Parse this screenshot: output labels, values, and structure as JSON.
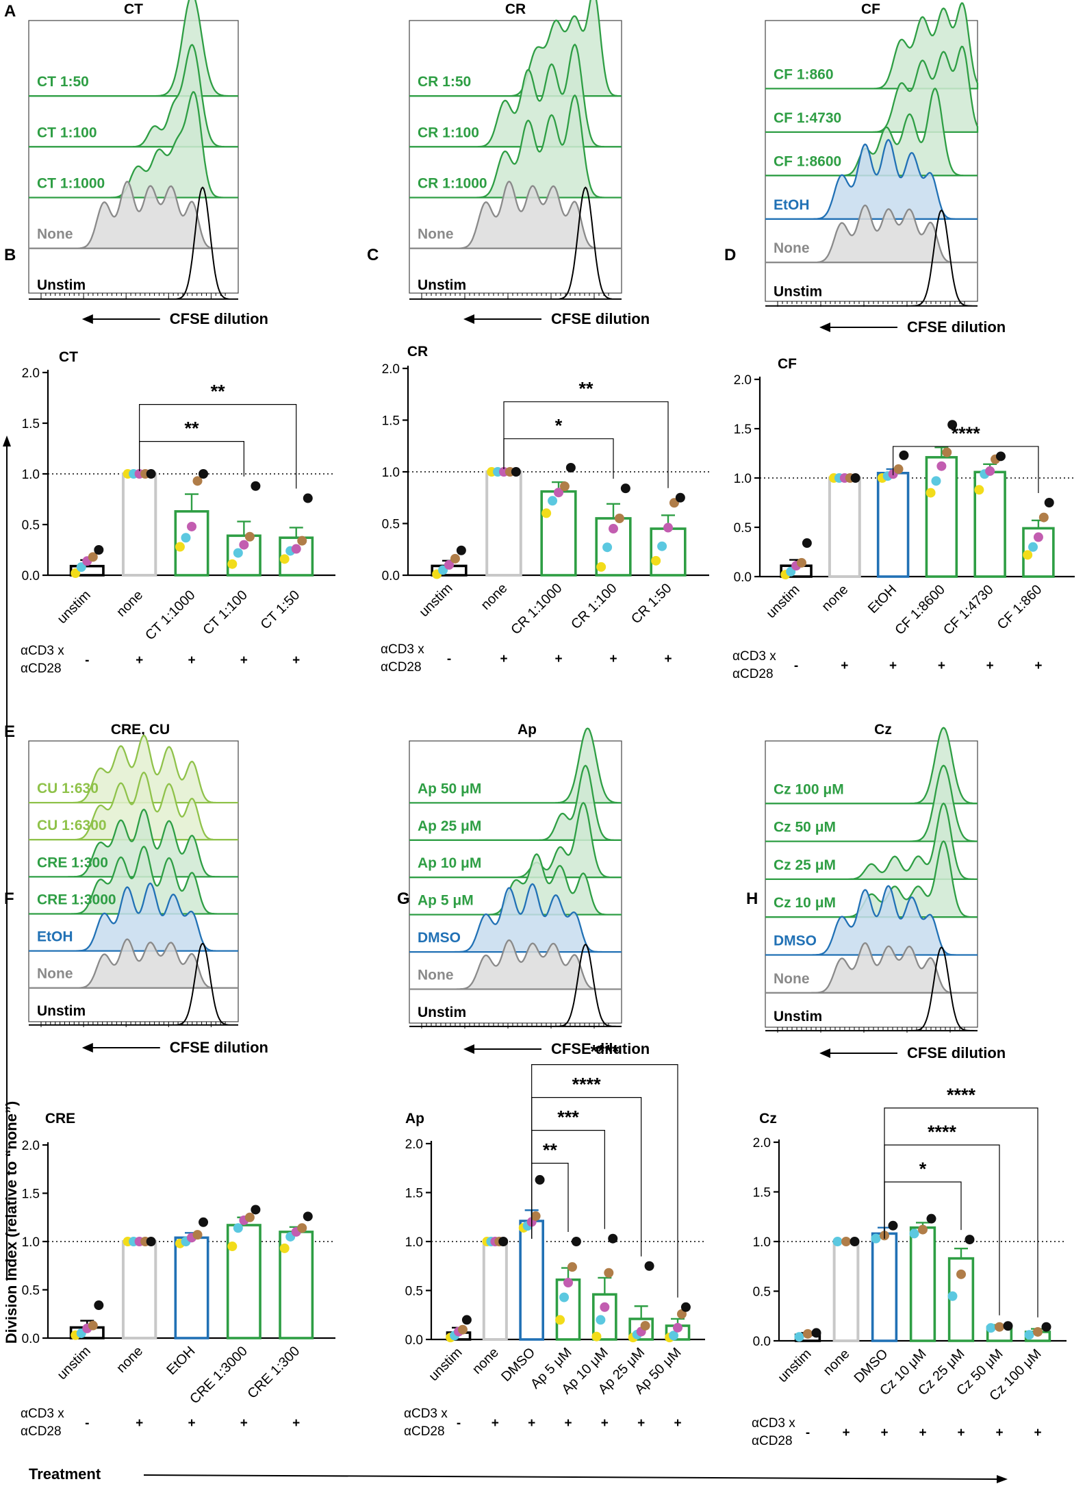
{
  "figure": {
    "y_axis_label": "Division Index (relative to “none”)",
    "x_axis_label": "Treatment",
    "stim_label_line1": "αCD3 x",
    "stim_label_line2": "αCD28"
  },
  "colors": {
    "green": "#2e9e44",
    "green_fill": "#cfe9d2",
    "lightgreen": "#8fc24a",
    "lightgreen_fill": "#e3f0d0",
    "blue": "#2171b5",
    "blue_fill": "#c7dcef",
    "gray": "#8a8a8a",
    "gray_fill": "#dcdcdc",
    "black": "#000000",
    "bar_gray": "#c8c8c8",
    "dot_yellow": "#f2dc1a",
    "dot_cyan": "#5bc8e0",
    "dot_magenta": "#c25db0",
    "dot_brown": "#b07d48",
    "dot_black": "#111111"
  },
  "histogram_panels": [
    {
      "letter": "A",
      "title": "CT",
      "xlabel": "CFSE dilution",
      "rows": [
        {
          "label": "CT 1:50",
          "color": "green"
        },
        {
          "label": "CT 1:100",
          "color": "green"
        },
        {
          "label": "CT 1:1000",
          "color": "green"
        },
        {
          "label": "None",
          "color": "gray"
        },
        {
          "label": "Unstim",
          "color": "black"
        }
      ]
    },
    {
      "letter": "",
      "title": "CR",
      "xlabel": "CFSE dilution",
      "rows": [
        {
          "label": "CR 1:50",
          "color": "green"
        },
        {
          "label": "CR 1:100",
          "color": "green"
        },
        {
          "label": "CR 1:1000",
          "color": "green"
        },
        {
          "label": "None",
          "color": "gray"
        },
        {
          "label": "Unstim",
          "color": "black"
        }
      ]
    },
    {
      "letter": "",
      "title": "CF",
      "xlabel": "CFSE dilution",
      "rows": [
        {
          "label": "CF 1:860",
          "color": "green"
        },
        {
          "label": "CF 1:4730",
          "color": "green"
        },
        {
          "label": "CF 1:8600",
          "color": "green"
        },
        {
          "label": "EtOH",
          "color": "blue"
        },
        {
          "label": "None",
          "color": "gray"
        },
        {
          "label": "Unstim",
          "color": "black"
        }
      ]
    },
    {
      "letter": "E",
      "title": "CRE, CU",
      "xlabel": "CFSE dilution",
      "rows": [
        {
          "label": "CU 1:630",
          "color": "lightgreen"
        },
        {
          "label": "CU 1:6300",
          "color": "lightgreen"
        },
        {
          "label": "CRE 1:300",
          "color": "green"
        },
        {
          "label": "CRE 1:3000",
          "color": "green"
        },
        {
          "label": "EtOH",
          "color": "blue"
        },
        {
          "label": "None",
          "color": "gray"
        },
        {
          "label": "Unstim",
          "color": "black"
        }
      ]
    },
    {
      "letter": "",
      "title": "Ap",
      "xlabel": "CFSE dilution",
      "rows": [
        {
          "label": "Ap 50 μM",
          "color": "green"
        },
        {
          "label": "Ap 25 μM",
          "color": "green"
        },
        {
          "label": "Ap 10 μM",
          "color": "green"
        },
        {
          "label": "Ap 5 μM",
          "color": "green"
        },
        {
          "label": "DMSO",
          "color": "blue"
        },
        {
          "label": "None",
          "color": "gray"
        },
        {
          "label": "Unstim",
          "color": "black"
        }
      ]
    },
    {
      "letter": "",
      "title": "Cz",
      "xlabel": "CFSE dilution",
      "rows": [
        {
          "label": "Cz 100 μM",
          "color": "green"
        },
        {
          "label": "Cz 50 μM",
          "color": "green"
        },
        {
          "label": "Cz 25 μM",
          "color": "green"
        },
        {
          "label": "Cz 10 μM",
          "color": "green"
        },
        {
          "label": "DMSO",
          "color": "blue"
        },
        {
          "label": "None",
          "color": "gray"
        },
        {
          "label": "Unstim",
          "color": "black"
        }
      ]
    }
  ],
  "chart_data": [
    {
      "type": "bar",
      "panel": "B",
      "title": "CT",
      "ylim": [
        0,
        2.0
      ],
      "yticks": [
        "0.0",
        "0.5",
        "1.0",
        "1.5",
        "2.0"
      ],
      "reference_line": 1.0,
      "categories": [
        "unstim",
        "none",
        "CT 1:1000",
        "CT 1:100",
        "CT 1:50"
      ],
      "stim": [
        "-",
        "+",
        "+",
        "+",
        "+"
      ],
      "bar_colors": [
        "black",
        "bar_gray",
        "green",
        "green",
        "green"
      ],
      "values": [
        0.09,
        1.0,
        0.63,
        0.39,
        0.37
      ],
      "errors": [
        0.06,
        0,
        0.17,
        0.14,
        0.1
      ],
      "points": [
        [
          0.02,
          0.08,
          0.14,
          0.18,
          0.25
        ],
        [
          1.0,
          1.0,
          1.0,
          1.0,
          1.0
        ],
        [
          0.28,
          0.37,
          0.48,
          0.93,
          1.0
        ],
        [
          0.11,
          0.22,
          0.3,
          0.38,
          0.88
        ],
        [
          0.16,
          0.24,
          0.26,
          0.34,
          0.76
        ]
      ],
      "significance": [
        {
          "from": 1,
          "to": 3,
          "label": "**"
        },
        {
          "from": 1,
          "to": 4,
          "label": "**"
        }
      ]
    },
    {
      "type": "bar",
      "panel": "C",
      "title": "CR",
      "ylim": [
        0,
        2.0
      ],
      "yticks": [
        "0.0",
        "0.5",
        "1.0",
        "1.5",
        "2.0"
      ],
      "reference_line": 1.0,
      "categories": [
        "unstim",
        "none",
        "CR 1:1000",
        "CR 1:100",
        "CR 1:50"
      ],
      "stim": [
        "-",
        "+",
        "+",
        "+",
        "+"
      ],
      "bar_colors": [
        "black",
        "bar_gray",
        "green",
        "green",
        "green"
      ],
      "values": [
        0.09,
        1.0,
        0.81,
        0.55,
        0.45
      ],
      "errors": [
        0.05,
        0,
        0.09,
        0.14,
        0.13
      ],
      "points": [
        [
          0.01,
          0.05,
          0.1,
          0.16,
          0.24
        ],
        [
          1.0,
          1.0,
          1.0,
          1.0,
          1.0
        ],
        [
          0.6,
          0.72,
          0.8,
          0.86,
          1.04
        ],
        [
          0.08,
          0.27,
          0.45,
          0.55,
          0.84
        ],
        [
          0.14,
          0.28,
          0.46,
          0.7,
          0.75
        ]
      ],
      "significance": [
        {
          "from": 1,
          "to": 3,
          "label": "*"
        },
        {
          "from": 1,
          "to": 4,
          "label": "**"
        }
      ]
    },
    {
      "type": "bar",
      "panel": "D",
      "title": "CF",
      "ylim": [
        0,
        2.0
      ],
      "yticks": [
        "0.0",
        "0.5",
        "1.0",
        "1.5",
        "2.0"
      ],
      "reference_line": 1.0,
      "categories": [
        "unstim",
        "none",
        "EtOH",
        "CF 1:8600",
        "CF 1:4730",
        "CF 1:860"
      ],
      "stim": [
        "-",
        "+",
        "+",
        "+",
        "+",
        "+"
      ],
      "bar_colors": [
        "black",
        "bar_gray",
        "blue",
        "green",
        "green",
        "green"
      ],
      "values": [
        0.11,
        1.0,
        1.05,
        1.21,
        1.06,
        0.49
      ],
      "errors": [
        0.06,
        0,
        0.04,
        0.1,
        0.08,
        0.08
      ],
      "points": [
        [
          0.02,
          0.05,
          0.11,
          0.14,
          0.34
        ],
        [
          1.0,
          1.0,
          1.0,
          1.0,
          1.0
        ],
        [
          1.0,
          1.02,
          1.04,
          1.09,
          1.23
        ],
        [
          0.85,
          0.97,
          1.12,
          1.26,
          1.54
        ],
        [
          0.88,
          1.04,
          1.07,
          1.19,
          1.22
        ],
        [
          0.22,
          0.3,
          0.4,
          0.6,
          0.75
        ]
      ],
      "significance": [
        {
          "from": 2,
          "to": 5,
          "label": "****"
        }
      ]
    },
    {
      "type": "bar",
      "panel": "F",
      "title": "CRE",
      "ylim": [
        0,
        2.0
      ],
      "yticks": [
        "0.0",
        "0.5",
        "1.0",
        "1.5",
        "2.0"
      ],
      "reference_line": 1.0,
      "categories": [
        "unstim",
        "none",
        "EtOH",
        "CRE 1:3000",
        "CRE 1:300"
      ],
      "stim": [
        "-",
        "+",
        "+",
        "+",
        "+"
      ],
      "bar_colors": [
        "black",
        "bar_gray",
        "blue",
        "green",
        "green"
      ],
      "values": [
        0.11,
        1.0,
        1.04,
        1.17,
        1.1
      ],
      "errors": [
        0.07,
        0,
        0.05,
        0.08,
        0.05
      ],
      "points": [
        [
          0.03,
          0.05,
          0.1,
          0.13,
          0.34
        ],
        [
          1.0,
          1.0,
          1.0,
          1.0,
          1.0
        ],
        [
          0.98,
          1.0,
          1.04,
          1.07,
          1.2
        ],
        [
          0.95,
          1.14,
          1.22,
          1.25,
          1.33
        ],
        [
          0.93,
          1.05,
          1.1,
          1.14,
          1.26
        ]
      ],
      "significance": []
    },
    {
      "type": "bar",
      "panel": "G",
      "title": "Ap",
      "ylim": [
        0,
        2.0
      ],
      "yticks": [
        "0.0",
        "0.5",
        "1.0",
        "1.5",
        "2.0"
      ],
      "reference_line": 1.0,
      "categories": [
        "unstim",
        "none",
        "DMSO",
        "Ap 5 μM",
        "Ap 10 μM",
        "Ap 25 μM",
        "Ap 50 μM"
      ],
      "stim": [
        "-",
        "+",
        "+",
        "+",
        "+",
        "+",
        "+"
      ],
      "bar_colors": [
        "black",
        "bar_gray",
        "blue",
        "green",
        "green",
        "green",
        "green"
      ],
      "values": [
        0.07,
        1.0,
        1.21,
        0.61,
        0.46,
        0.21,
        0.14
      ],
      "errors": [
        0.05,
        0,
        0.11,
        0.12,
        0.17,
        0.13,
        0.07
      ],
      "points": [
        [
          0.02,
          0.04,
          0.08,
          0.1,
          0.2
        ],
        [
          1.0,
          1.0,
          1.0,
          1.0,
          1.0
        ],
        [
          1.14,
          1.16,
          1.2,
          1.26,
          1.63
        ],
        [
          0.2,
          0.43,
          0.58,
          0.74,
          1.0
        ],
        [
          0.03,
          0.2,
          0.33,
          0.68,
          1.03
        ],
        [
          0.02,
          0.05,
          0.08,
          0.14,
          0.75
        ],
        [
          0.02,
          0.04,
          0.12,
          0.26,
          0.33
        ]
      ],
      "significance": [
        {
          "from": 2,
          "to": 3,
          "label": "**"
        },
        {
          "from": 2,
          "to": 4,
          "label": "***"
        },
        {
          "from": 2,
          "to": 5,
          "label": "****"
        },
        {
          "from": 2,
          "to": 6,
          "label": "****"
        }
      ]
    },
    {
      "type": "bar",
      "panel": "H",
      "title": "Cz",
      "ylim": [
        0,
        2.0
      ],
      "yticks": [
        "0.0",
        "0.5",
        "1.0",
        "1.5",
        "2.0"
      ],
      "reference_line": 1.0,
      "categories": [
        "unstim",
        "none",
        "DMSO",
        "Cz 10 μM",
        "Cz 25 μM",
        "Cz 50 μM",
        "Cz 100 μM"
      ],
      "stim": [
        "-",
        "+",
        "+",
        "+",
        "+",
        "+",
        "+"
      ],
      "bar_colors": [
        "black",
        "bar_gray",
        "blue",
        "green",
        "green",
        "green",
        "green"
      ],
      "values": [
        0.06,
        1.0,
        1.08,
        1.14,
        0.83,
        0.14,
        0.09
      ],
      "errors": [
        0.02,
        0,
        0.06,
        0.05,
        0.1,
        0.02,
        0.03
      ],
      "points": [
        [
          0.04,
          0.07,
          0.08
        ],
        [
          1.0,
          1.0,
          1.0
        ],
        [
          1.03,
          1.06,
          1.16
        ],
        [
          1.08,
          1.12,
          1.23
        ],
        [
          0.45,
          0.67,
          1.02
        ],
        [
          0.13,
          0.14,
          0.15
        ],
        [
          0.06,
          0.09,
          0.14
        ]
      ],
      "significance": [
        {
          "from": 2,
          "to": 4,
          "label": "*"
        },
        {
          "from": 2,
          "to": 5,
          "label": "****"
        },
        {
          "from": 2,
          "to": 6,
          "label": "****"
        }
      ]
    }
  ]
}
